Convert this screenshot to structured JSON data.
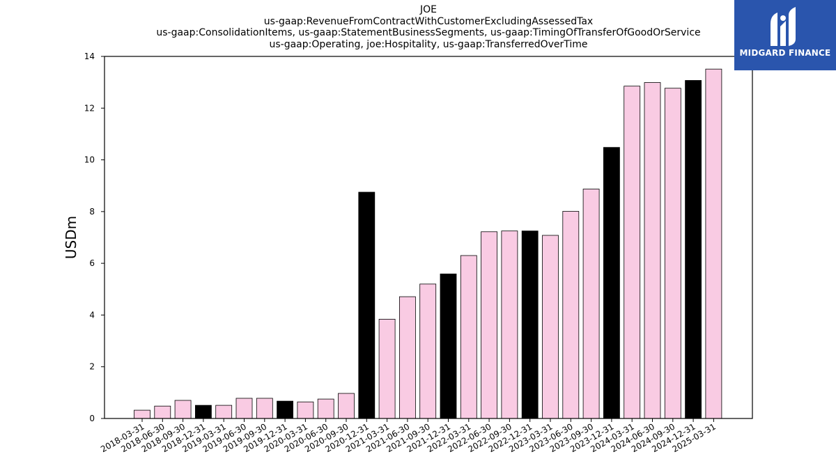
{
  "chart_data": {
    "type": "bar",
    "title_lines": [
      "JOE",
      "us-gaap:RevenueFromContractWithCustomerExcludingAssessedTax",
      "us-gaap:ConsolidationItems, us-gaap:StatementBusinessSegments, us-gaap:TimingOfTransferOfGoodOrService",
      "us-gaap:Operating, joe:Hospitality, us-gaap:TransferredOverTime"
    ],
    "ylabel": "USDm",
    "ylim": [
      0,
      14
    ],
    "yticks": [
      0,
      2,
      4,
      6,
      8,
      10,
      12,
      14
    ],
    "categories": [
      "2018-03-31",
      "2018-06-30",
      "2018-09-30",
      "2018-12-31",
      "2019-03-31",
      "2019-06-30",
      "2019-09-30",
      "2019-12-31",
      "2020-03-31",
      "2020-06-30",
      "2020-09-30",
      "2020-12-31",
      "2021-03-31",
      "2021-06-30",
      "2021-09-30",
      "2021-12-31",
      "2022-03-31",
      "2022-06-30",
      "2022-09-30",
      "2022-12-31",
      "2023-03-31",
      "2023-06-30",
      "2023-09-30",
      "2023-12-31",
      "2024-03-31",
      "2024-06-30",
      "2024-09-30",
      "2024-12-31",
      "2025-03-31"
    ],
    "values": [
      0.32,
      0.48,
      0.7,
      0.51,
      0.51,
      0.78,
      0.78,
      0.67,
      0.64,
      0.75,
      0.97,
      8.75,
      3.84,
      4.71,
      5.2,
      5.59,
      6.3,
      7.22,
      7.25,
      7.25,
      7.08,
      8.01,
      8.87,
      10.48,
      12.85,
      12.99,
      12.77,
      13.07,
      13.51
    ],
    "colors": {
      "quarter": "#f9cbe3",
      "year_end": "#000000",
      "edge": "#000000"
    },
    "bar_kind": [
      "q",
      "q",
      "q",
      "y",
      "q",
      "q",
      "q",
      "y",
      "q",
      "q",
      "q",
      "y",
      "q",
      "q",
      "q",
      "y",
      "q",
      "q",
      "q",
      "y",
      "q",
      "q",
      "q",
      "y",
      "q",
      "q",
      "q",
      "y",
      "q"
    ],
    "grid": false,
    "legend": "none"
  },
  "logo": {
    "text": "MIDGARD FINANCE",
    "icon": "midgard-logo-icon",
    "color": "#2a55ad"
  }
}
